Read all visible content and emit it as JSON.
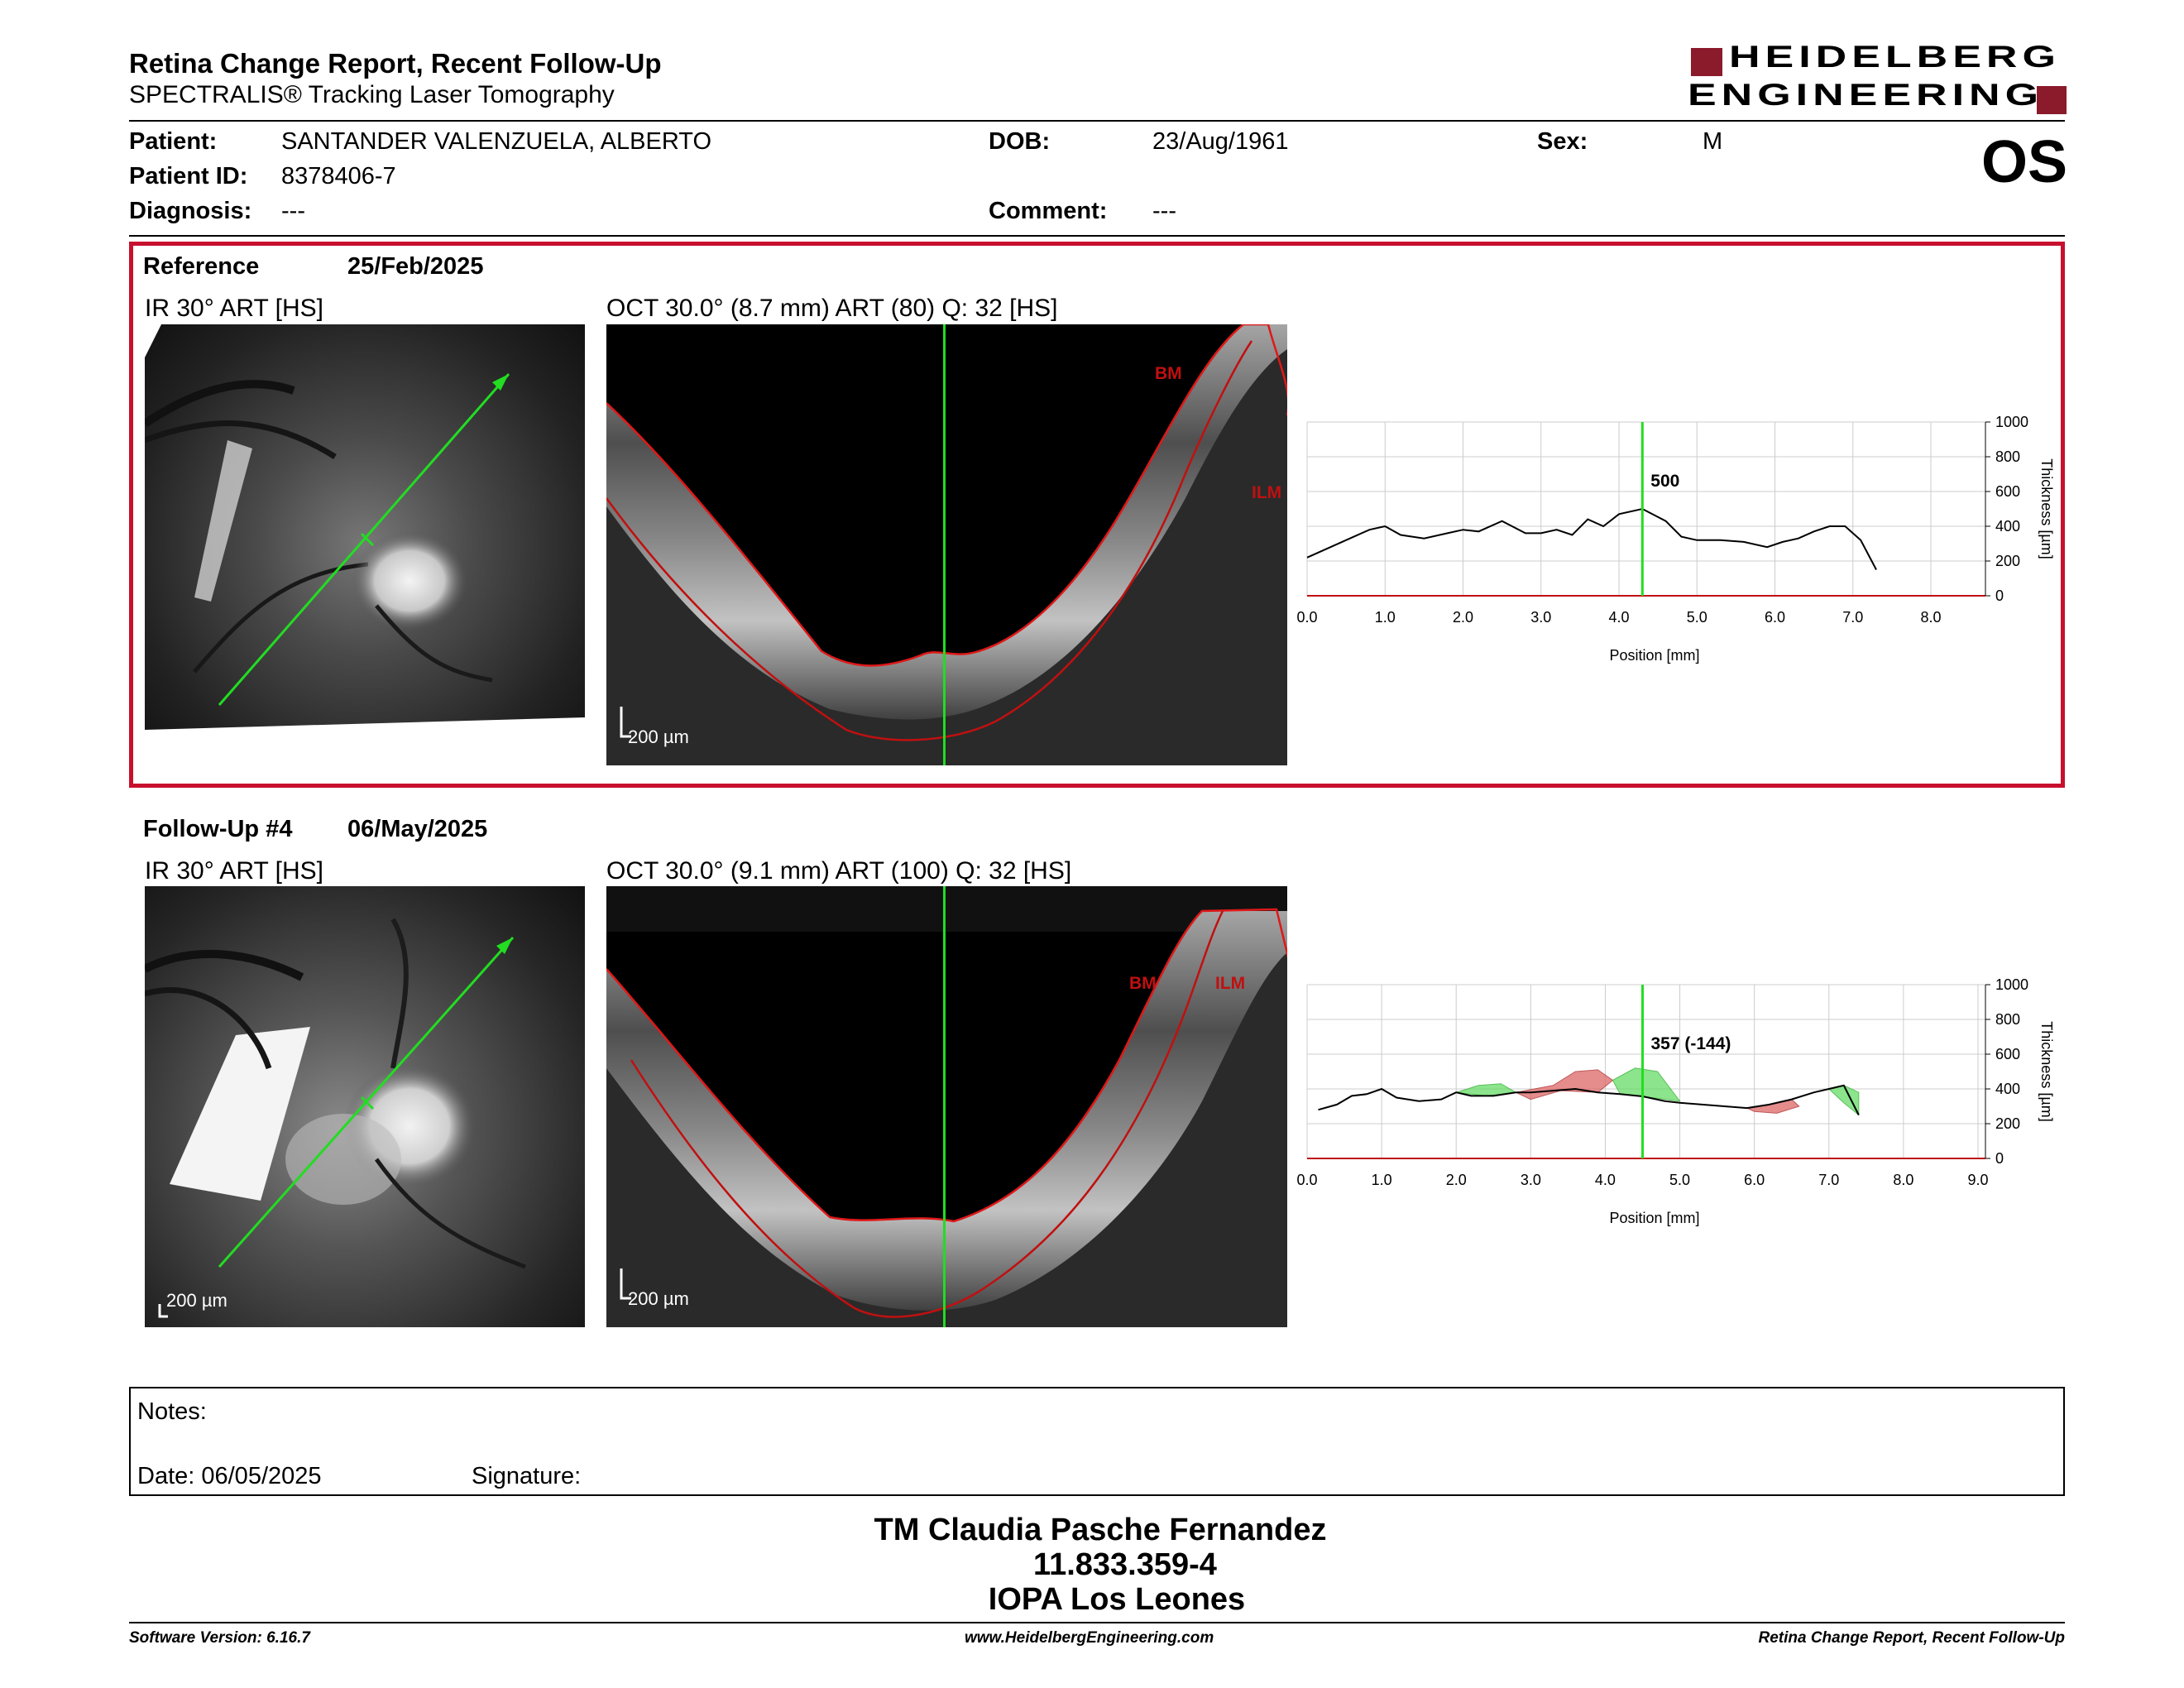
{
  "header": {
    "title": "Retina Change Report, Recent Follow-Up",
    "subtitle": "SPECTRALIS® Tracking Laser Tomography",
    "logo_line1": "HEIDELBERG",
    "logo_line2": "ENGINEERING",
    "eye": "OS"
  },
  "patient": {
    "name_label": "Patient:",
    "name": "SANTANDER VALENZUELA, ALBERTO",
    "id_label": "Patient ID:",
    "id": "8378406-7",
    "diag_label": "Diagnosis:",
    "diag": "---",
    "dob_label": "DOB:",
    "dob": "23/Aug/1961",
    "comment_label": "Comment:",
    "comment": "---",
    "sex_label": "Sex:",
    "sex": "M"
  },
  "reference": {
    "label": "Reference",
    "date": "25/Feb/2025",
    "ir_label": "IR 30° ART [HS]",
    "oct_label": "OCT 30.0° (8.7 mm) ART (80) Q: 32 [HS]",
    "scale": "200 µm",
    "bm": "BM",
    "ilm": "ILM"
  },
  "followup": {
    "label": "Follow-Up #4",
    "date": "06/May/2025",
    "ir_label": "IR 30° ART [HS]",
    "oct_label": "OCT 30.0° (9.1 mm) ART (100) Q: 32 [HS]",
    "scale": "200 µm",
    "bm": "BM",
    "ilm": "ILM"
  },
  "notes": {
    "label": "Notes:",
    "date": "Date: 06/05/2025",
    "signature": "Signature:"
  },
  "signature_block": {
    "line1": "TM Claudia Pasche Fernandez",
    "line2": "11.833.359-4",
    "line3": "IOPA Los Leones"
  },
  "footer": {
    "left": "Software Version: 6.16.7",
    "center": "www.HeidelbergEngineering.com",
    "right": "Retina Change Report, Recent Follow-Up"
  },
  "colors": {
    "accent": "#c8102e",
    "cursor": "#22dd22",
    "increase": "#66dd66",
    "decrease": "#dd6666"
  },
  "chart_data": [
    {
      "type": "line",
      "xlabel": "Position [mm]",
      "ylabel": "Thickness [µm]",
      "xlim": [
        0,
        8.7
      ],
      "ylim": [
        0,
        1000
      ],
      "x_ticks": [
        0.0,
        1.0,
        2.0,
        3.0,
        4.0,
        5.0,
        6.0,
        7.0,
        8.0
      ],
      "y_ticks": [
        0,
        200,
        400,
        600,
        800,
        1000
      ],
      "cursor_x": 4.3,
      "cursor_label": "500",
      "series": [
        {
          "x": [
            0.0,
            0.3,
            0.6,
            0.8,
            1.0,
            1.2,
            1.5,
            1.8,
            2.0,
            2.2,
            2.5,
            2.8,
            3.0,
            3.2,
            3.4,
            3.6,
            3.8,
            4.0,
            4.3,
            4.6,
            4.8,
            5.0,
            5.3,
            5.6,
            5.9,
            6.1,
            6.3,
            6.5,
            6.7,
            6.9,
            7.1,
            7.3
          ],
          "y": [
            220,
            280,
            340,
            380,
            400,
            350,
            330,
            360,
            380,
            370,
            430,
            360,
            360,
            380,
            350,
            440,
            400,
            470,
            500,
            430,
            340,
            320,
            320,
            310,
            280,
            310,
            330,
            370,
            400,
            400,
            320,
            150
          ]
        }
      ]
    },
    {
      "type": "line",
      "xlabel": "Position [mm]",
      "ylabel": "Thickness [µm]",
      "xlim": [
        0,
        9.1
      ],
      "ylim": [
        0,
        1000
      ],
      "x_ticks": [
        0.0,
        1.0,
        2.0,
        3.0,
        4.0,
        5.0,
        6.0,
        7.0,
        8.0,
        9.0
      ],
      "y_ticks": [
        0,
        200,
        400,
        600,
        800,
        1000
      ],
      "cursor_x": 4.5,
      "cursor_label": "357 (-144)",
      "series": [
        {
          "x": [
            0.15,
            0.4,
            0.6,
            0.8,
            1.0,
            1.2,
            1.5,
            1.8,
            2.0,
            2.2,
            2.5,
            2.8,
            3.0,
            3.3,
            3.6,
            3.9,
            4.2,
            4.5,
            4.8,
            5.0,
            5.3,
            5.6,
            5.9,
            6.2,
            6.5,
            6.8,
            7.0,
            7.2,
            7.4
          ],
          "y": [
            280,
            310,
            360,
            370,
            400,
            350,
            330,
            340,
            380,
            360,
            360,
            380,
            380,
            390,
            400,
            380,
            370,
            357,
            330,
            320,
            310,
            300,
            290,
            310,
            340,
            380,
            400,
            420,
            250
          ]
        }
      ]
    }
  ]
}
